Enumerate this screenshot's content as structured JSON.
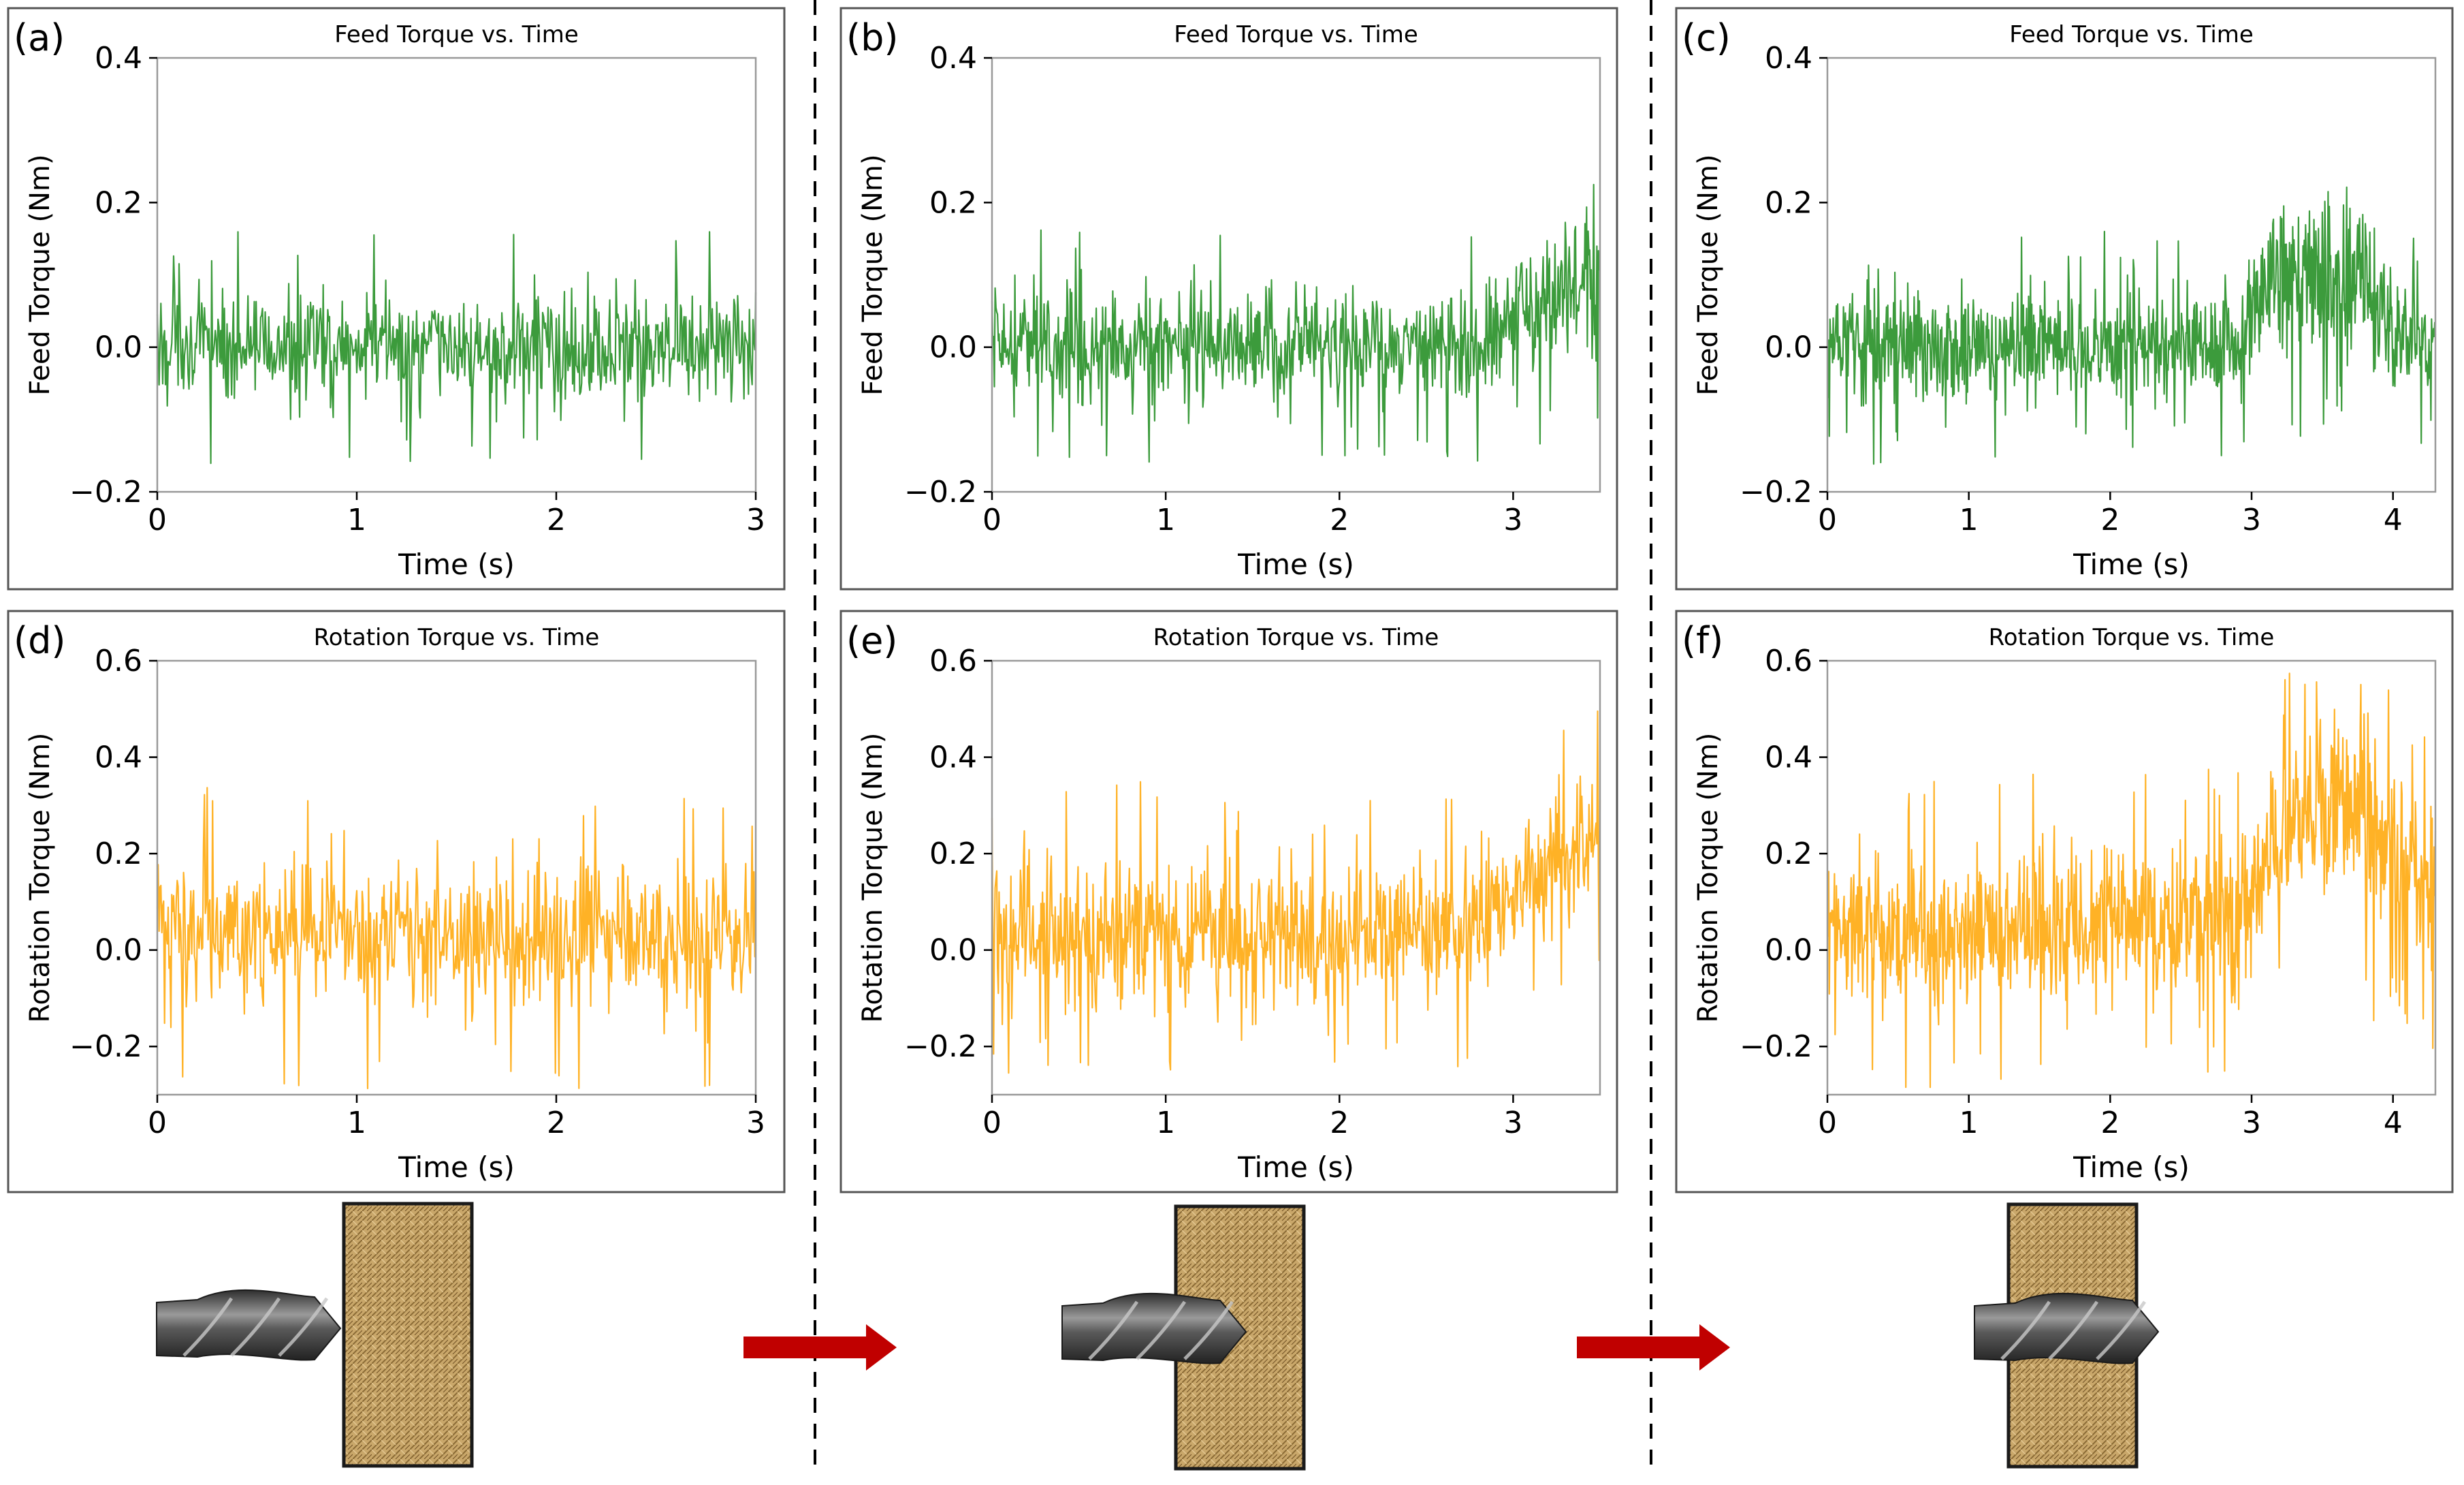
{
  "colors": {
    "feed": "#1a8a1a",
    "rotation": "#ffa500",
    "arrow": "#c00000",
    "panel_border": "#555555",
    "wood_base": "#c9a76a",
    "wood_line": "#7a5a2a",
    "drill_dark": "#3a3a3a",
    "drill_light": "#9a9a9a"
  },
  "icons": {
    "drill": "drill-bit-icon",
    "workpiece": "wood-workpiece-icon",
    "arrow": "right-arrow-icon"
  },
  "chart_data": [
    {
      "panel": "(a)",
      "type": "line",
      "title": "Feed Torque vs. Time",
      "xlabel": "Time (s)",
      "ylabel": "Feed Torque (Nm)",
      "xlim": [
        0,
        3
      ],
      "ylim": [
        -0.2,
        0.4
      ],
      "xticks": [
        "0",
        "1",
        "2",
        "3"
      ],
      "yticks": [
        "−0.2",
        "0.0",
        "0.2",
        "0.4"
      ],
      "series": [
        {
          "name": "Feed Torque",
          "color": "#1a8a1a",
          "t_end": 3.0,
          "profile": [
            [
              0,
              0.0,
              0.045
            ],
            [
              3.0,
              0.0,
              0.045
            ]
          ]
        }
      ]
    },
    {
      "panel": "(b)",
      "type": "line",
      "title": "Feed Torque vs. Time",
      "xlabel": "Time (s)",
      "ylabel": "Feed Torque (Nm)",
      "xlim": [
        0,
        3.5
      ],
      "ylim": [
        -0.2,
        0.4
      ],
      "xticks": [
        "0",
        "1",
        "2",
        "3"
      ],
      "yticks": [
        "−0.2",
        "0.0",
        "0.2",
        "0.4"
      ],
      "series": [
        {
          "name": "Feed Torque",
          "color": "#1a8a1a",
          "t_end": 3.5,
          "profile": [
            [
              0,
              0.0,
              0.045
            ],
            [
              2.8,
              0.0,
              0.045
            ],
            [
              3.0,
              0.05,
              0.05
            ],
            [
              3.5,
              0.09,
              0.07
            ]
          ]
        }
      ]
    },
    {
      "panel": "(c)",
      "type": "line",
      "title": "Feed Torque vs. Time",
      "xlabel": "Time (s)",
      "ylabel": "Feed Torque (Nm)",
      "xlim": [
        0,
        4.3
      ],
      "ylim": [
        -0.2,
        0.4
      ],
      "xticks": [
        "0",
        "1",
        "2",
        "3",
        "4"
      ],
      "yticks": [
        "−0.2",
        "0.0",
        "0.2",
        "0.4"
      ],
      "series": [
        {
          "name": "Feed Torque",
          "color": "#1a8a1a",
          "t_end": 4.3,
          "profile": [
            [
              0,
              0.0,
              0.045
            ],
            [
              2.9,
              0.0,
              0.045
            ],
            [
              3.1,
              0.1,
              0.06
            ],
            [
              3.8,
              0.1,
              0.07
            ],
            [
              4.0,
              0.02,
              0.05
            ],
            [
              4.3,
              0.0,
              0.04
            ]
          ]
        }
      ]
    },
    {
      "panel": "(d)",
      "type": "line",
      "title": "Rotation Torque vs. Time",
      "xlabel": "Time (s)",
      "ylabel": "Rotation Torque (Nm)",
      "xlim": [
        0,
        3
      ],
      "ylim": [
        -0.3,
        0.6
      ],
      "xticks": [
        "0",
        "1",
        "2",
        "3"
      ],
      "yticks": [
        "−0.2",
        "0.0",
        "0.2",
        "0.4",
        "0.6"
      ],
      "series": [
        {
          "name": "Rotation Torque",
          "color": "#ffa500",
          "t_end": 3.0,
          "profile": [
            [
              0,
              0.03,
              0.09
            ],
            [
              3.0,
              0.03,
              0.09
            ]
          ]
        }
      ]
    },
    {
      "panel": "(e)",
      "type": "line",
      "title": "Rotation Torque vs. Time",
      "xlabel": "Time (s)",
      "ylabel": "Rotation Torque (Nm)",
      "xlim": [
        0,
        3.5
      ],
      "ylim": [
        -0.3,
        0.6
      ],
      "xticks": [
        "0",
        "1",
        "2",
        "3"
      ],
      "yticks": [
        "−0.2",
        "0.0",
        "0.2",
        "0.4",
        "0.6"
      ],
      "series": [
        {
          "name": "Rotation Torque",
          "color": "#ffa500",
          "t_end": 3.5,
          "profile": [
            [
              0,
              0.03,
              0.09
            ],
            [
              2.8,
              0.05,
              0.09
            ],
            [
              3.1,
              0.15,
              0.08
            ],
            [
              3.5,
              0.22,
              0.09
            ]
          ]
        }
      ]
    },
    {
      "panel": "(f)",
      "type": "line",
      "title": "Rotation Torque vs. Time",
      "xlabel": "Time (s)",
      "ylabel": "Rotation Torque (Nm)",
      "xlim": [
        0,
        4.3
      ],
      "ylim": [
        -0.3,
        0.6
      ],
      "xticks": [
        "0",
        "1",
        "2",
        "3",
        "4"
      ],
      "yticks": [
        "−0.2",
        "0.0",
        "0.2",
        "0.4",
        "0.6"
      ],
      "series": [
        {
          "name": "Rotation Torque",
          "color": "#ffa500",
          "t_end": 4.3,
          "profile": [
            [
              0,
              0.03,
              0.09
            ],
            [
              2.9,
              0.06,
              0.09
            ],
            [
              3.2,
              0.25,
              0.1
            ],
            [
              3.8,
              0.3,
              0.12
            ],
            [
              4.0,
              0.18,
              0.12
            ],
            [
              4.3,
              0.15,
              0.1
            ]
          ]
        }
      ]
    }
  ],
  "stages": [
    {
      "name": "before-contact"
    },
    {
      "name": "partial-penetration"
    },
    {
      "name": "full-penetration"
    }
  ]
}
